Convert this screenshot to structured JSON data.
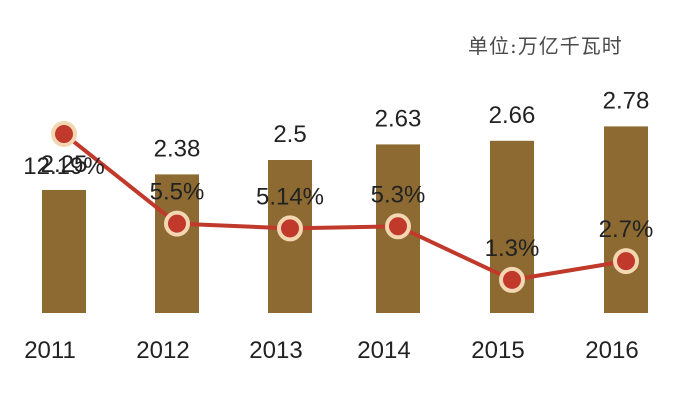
{
  "unit_label": "单位:万亿千瓦时",
  "chart_data": {
    "type": "bar",
    "categories": [
      "2011",
      "2012",
      "2013",
      "2014",
      "2015",
      "2016"
    ],
    "series": [
      {
        "kind": "bar",
        "values": [
          2.25,
          2.38,
          2.5,
          2.63,
          2.66,
          2.78
        ],
        "labels": [
          "2.25",
          "2.38",
          "2.5",
          "2.63",
          "2.66",
          "2.78"
        ],
        "color": "#8c6a32"
      },
      {
        "kind": "line",
        "values": [
          12.19,
          5.5,
          5.14,
          5.3,
          1.3,
          2.7
        ],
        "labels": [
          "12.19%",
          "5.5%",
          "5.14%",
          "5.3%",
          "1.3%",
          "2.7%"
        ],
        "color": "#c0392b",
        "marker_ring": "#f3d6b2"
      }
    ],
    "grid": false,
    "legend": "none"
  }
}
